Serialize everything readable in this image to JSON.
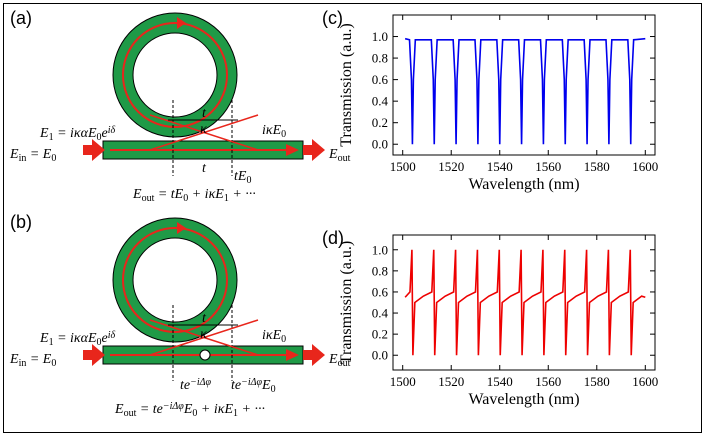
{
  "diagram_a": {
    "panel": "(a)",
    "e1": [
      "E",
      "1",
      " = iκαE",
      "0",
      "e",
      "iδ"
    ],
    "t_top": "t",
    "kappa": "κ",
    "t_bottom": "t",
    "te0": [
      "tE",
      "0"
    ],
    "ike0": [
      "iκE",
      "0"
    ],
    "ein": [
      "E",
      "in",
      " = E",
      "0"
    ],
    "eout": [
      "E",
      "out"
    ],
    "eq": [
      "E",
      "out",
      " = tE",
      "0",
      " + iκE",
      "1",
      " + ···"
    ]
  },
  "diagram_b": {
    "panel": "(b)",
    "e1": [
      "E",
      "1",
      " = iκαE",
      "0",
      "e",
      "iδ"
    ],
    "t_top": "t",
    "kappa": "κ",
    "phase": [
      "te",
      "−iΔφ"
    ],
    "phase_e0": [
      "te",
      "−iΔφ",
      "E",
      "0"
    ],
    "ike0": [
      "iκE",
      "0"
    ],
    "ein": [
      "E",
      "in",
      " = E",
      "0"
    ],
    "eout": [
      "E",
      "out"
    ],
    "eq": [
      "E",
      "out",
      " = te",
      "−iΔφ",
      "E",
      "0",
      " + iκE",
      "1",
      " + ···"
    ]
  },
  "chart_data": [
    {
      "type": "line",
      "panel": "(c)",
      "xlabel": "Wavelength (nm)",
      "ylabel": "Transmission (a.u.)",
      "x": [
        1501,
        1502.8,
        1503.6,
        1504,
        1504.4,
        1505.2,
        1511.8,
        1512.6,
        1513,
        1513.4,
        1514.2,
        1520.8,
        1521.6,
        1522,
        1522.4,
        1523.2,
        1529.8,
        1530.6,
        1531,
        1531.4,
        1532.2,
        1538.8,
        1539.6,
        1540,
        1540.4,
        1541.2,
        1547.8,
        1548.6,
        1549,
        1549.4,
        1550.2,
        1556.8,
        1557.6,
        1558,
        1558.4,
        1559.2,
        1565.8,
        1566.6,
        1567,
        1567.4,
        1568.2,
        1574.8,
        1575.6,
        1576,
        1576.4,
        1577.2,
        1583.8,
        1584.6,
        1585,
        1585.4,
        1586.2,
        1592.8,
        1593.6,
        1594,
        1594.4,
        1595.2,
        1600
      ],
      "series": [
        {
          "color": "#0000ee",
          "values": [
            0.98,
            0.97,
            0.6,
            0,
            0.6,
            0.97,
            0.97,
            0.6,
            0,
            0.6,
            0.97,
            0.97,
            0.6,
            0,
            0.6,
            0.97,
            0.97,
            0.6,
            0,
            0.6,
            0.97,
            0.97,
            0.6,
            0,
            0.6,
            0.97,
            0.97,
            0.6,
            0,
            0.6,
            0.97,
            0.97,
            0.6,
            0,
            0.6,
            0.97,
            0.97,
            0.6,
            0,
            0.6,
            0.97,
            0.97,
            0.6,
            0,
            0.6,
            0.97,
            0.97,
            0.6,
            0,
            0.6,
            0.97,
            0.97,
            0.6,
            0,
            0.6,
            0.97,
            0.98
          ]
        }
      ],
      "xlim": [
        1496,
        1604
      ],
      "ylim": [
        -0.1,
        1.2
      ],
      "xticks": [
        1500,
        1520,
        1540,
        1560,
        1580,
        1600
      ],
      "yticks": [
        {
          "value": 0,
          "label": "0.0"
        },
        0.2,
        0.4,
        0.6,
        0.8,
        {
          "value": 1,
          "label": "1.0"
        }
      ]
    },
    {
      "type": "line",
      "panel": "(d)",
      "xlabel": "Wavelength (nm)",
      "ylabel": "Transmission (a.u.)",
      "x": [
        1501,
        1503,
        1503.8,
        1504.2,
        1505,
        1508.5,
        1512,
        1512.8,
        1513.2,
        1514,
        1517.5,
        1521,
        1521.8,
        1522.2,
        1523,
        1526.5,
        1530,
        1530.8,
        1531.2,
        1532,
        1535.5,
        1539,
        1539.8,
        1540.2,
        1541,
        1544.5,
        1548,
        1548.8,
        1549.2,
        1550,
        1553.5,
        1557,
        1557.8,
        1558.2,
        1559,
        1562.5,
        1566,
        1566.8,
        1567.2,
        1568,
        1571.5,
        1575,
        1575.8,
        1576.2,
        1577,
        1580.5,
        1584,
        1584.8,
        1585.2,
        1586,
        1589.5,
        1593,
        1593.8,
        1594.2,
        1595,
        1598.5,
        1600
      ],
      "series": [
        {
          "color": "#ee0000",
          "values": [
            0.55,
            0.6,
            1.0,
            0,
            0.5,
            0.56,
            0.6,
            1.0,
            0,
            0.5,
            0.56,
            0.6,
            1.0,
            0,
            0.5,
            0.56,
            0.6,
            1.0,
            0,
            0.5,
            0.56,
            0.6,
            1.0,
            0,
            0.5,
            0.56,
            0.6,
            1.0,
            0,
            0.5,
            0.56,
            0.6,
            1.0,
            0,
            0.5,
            0.56,
            0.6,
            1.0,
            0,
            0.5,
            0.56,
            0.6,
            1.0,
            0,
            0.5,
            0.56,
            0.6,
            1.0,
            0,
            0.5,
            0.56,
            0.6,
            1.0,
            0,
            0.5,
            0.56,
            0.55
          ]
        }
      ],
      "xlim": [
        1496,
        1604
      ],
      "ylim": [
        -0.14,
        1.14
      ],
      "xticks": [
        1500,
        1520,
        1540,
        1560,
        1580,
        1600
      ],
      "yticks": [
        {
          "value": 0,
          "label": "0.0"
        },
        0.2,
        0.4,
        0.6,
        0.8,
        {
          "value": 1,
          "label": "1.0"
        }
      ]
    }
  ]
}
